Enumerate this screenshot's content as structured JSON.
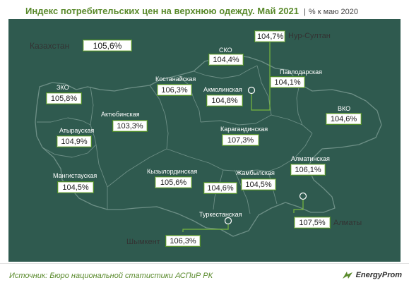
{
  "header": {
    "title": "Индекс потребительских цен на верхнюю одежду. Май 2021",
    "separator": "|",
    "subtitle": "% к маю 2020"
  },
  "national": {
    "label": "Казахстан",
    "value": "105,6%"
  },
  "regions": [
    {
      "name": "ЗКО",
      "value": "105,8%"
    },
    {
      "name": "Атырауская",
      "value": "104,9%"
    },
    {
      "name": "Мангистауская",
      "value": "104,5%"
    },
    {
      "name": "Актюбинская",
      "value": "103,3%"
    },
    {
      "name": "Костанайская",
      "value": "106,3%"
    },
    {
      "name": "СКО",
      "value": "104,4%"
    },
    {
      "name": "Акмолинская",
      "value": "104,8%"
    },
    {
      "name": "Павлодарская",
      "value": "104,1%"
    },
    {
      "name": "ВКО",
      "value": "104,6%"
    },
    {
      "name": "Карагандинская",
      "value": "107,3%"
    },
    {
      "name": "Кызылординская",
      "value": "105,6%"
    },
    {
      "name": "Жамбылская",
      "value": "104,5%"
    },
    {
      "name": "Алматинская",
      "value": "106,1%"
    },
    {
      "name": "Туркестанская",
      "value": "104,6%"
    }
  ],
  "cities": [
    {
      "name": "Нур-Султан",
      "value": "104,7%"
    },
    {
      "name": "Алматы",
      "value": "107,5%"
    },
    {
      "name": "Шымкент",
      "value": "106,3%"
    }
  ],
  "colors": {
    "map_fill": "#2f5a4f",
    "map_border": "#6d8f86",
    "box_border": "#4d8a2a",
    "accent_green": "#5a8a2c",
    "leader_line": "#78b83e"
  },
  "footer": {
    "source": "Источник: Бюро национальной статистики АСПиР РК",
    "brand": "EnergyProm",
    "brand_icon": "energyprom-logo-icon"
  }
}
